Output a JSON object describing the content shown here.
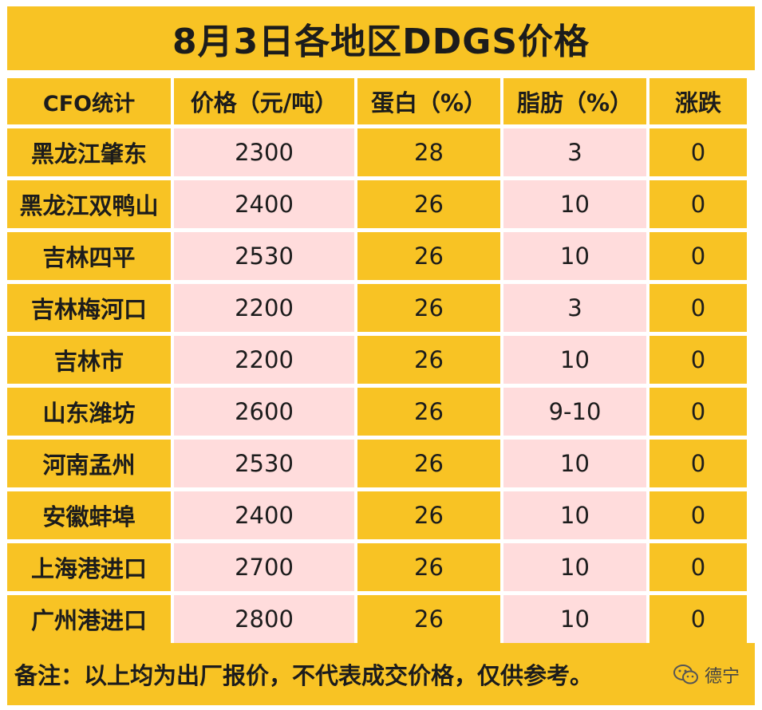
{
  "title": "8月3日各地区DDGS价格",
  "columns": [
    "CFO统计",
    "价格（元/吨）",
    "蛋白（%）",
    "脂肪（%）",
    "涨跌"
  ],
  "rows": [
    {
      "region": "黑龙江肇东",
      "price": "2300",
      "protein": "28",
      "fat": "3",
      "change": "0"
    },
    {
      "region": "黑龙江双鸭山",
      "price": "2400",
      "protein": "26",
      "fat": "10",
      "change": "0"
    },
    {
      "region": "吉林四平",
      "price": "2530",
      "protein": "26",
      "fat": "10",
      "change": "0"
    },
    {
      "region": "吉林梅河口",
      "price": "2200",
      "protein": "26",
      "fat": "3",
      "change": "0"
    },
    {
      "region": "吉林市",
      "price": "2200",
      "protein": "26",
      "fat": "10",
      "change": "0"
    },
    {
      "region": "山东潍坊",
      "price": "2600",
      "protein": "26",
      "fat": "9-10",
      "change": "0"
    },
    {
      "region": "河南孟州",
      "price": "2530",
      "protein": "26",
      "fat": "10",
      "change": "0"
    },
    {
      "region": "安徽蚌埠",
      "price": "2400",
      "protein": "26",
      "fat": "10",
      "change": "0"
    },
    {
      "region": "上海港进口",
      "price": "2700",
      "protein": "26",
      "fat": "10",
      "change": "0"
    },
    {
      "region": "广州港进口",
      "price": "2800",
      "protein": "26",
      "fat": "10",
      "change": "0"
    }
  ],
  "note": "备注：以上均为出厂报价，不代表成交价格，仅供参考。",
  "watermark": {
    "icon": "wechat-icon",
    "text": "德宁"
  },
  "colors": {
    "yellow": "#f8c324",
    "pink": "#ffdcdc",
    "text": "#1c1c1c"
  }
}
